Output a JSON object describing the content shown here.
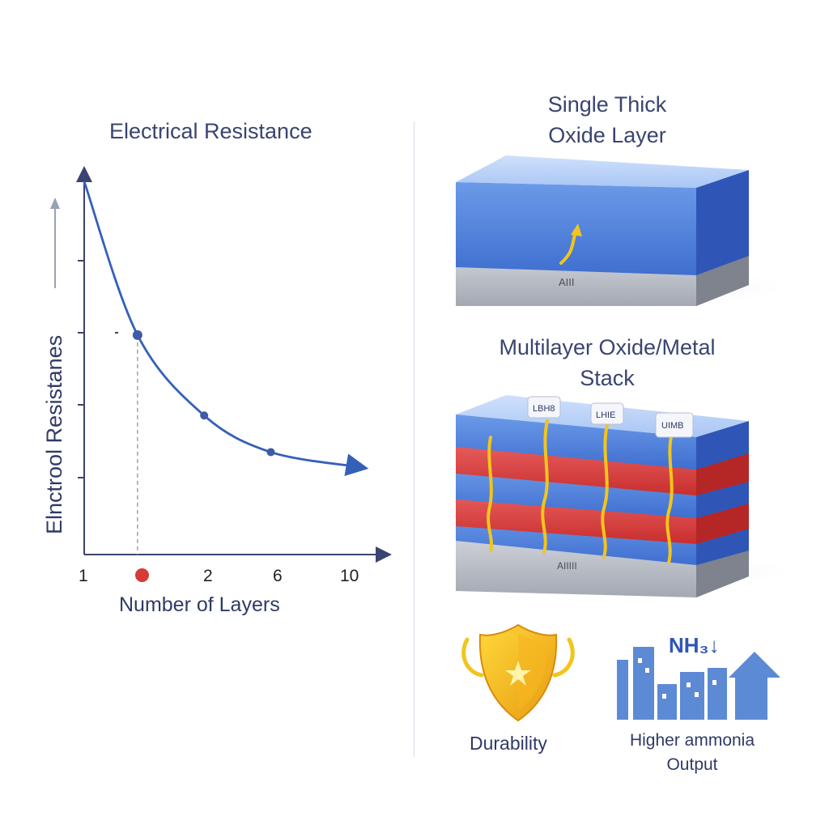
{
  "chart": {
    "title": "Electrical Resistance",
    "ylabel": "Elnctrool Resistanes",
    "xlabel": "Number of Layers",
    "tick_labels": [
      "1",
      "2",
      "6",
      "10"
    ]
  },
  "chart_data": {
    "type": "line",
    "title": "Electrical Resistance",
    "xlabel": "Number of Layers",
    "ylabel": "Elnctrool Resistanes",
    "x_tick_labels": [
      "1",
      "2",
      "6",
      "10"
    ],
    "series": [
      {
        "x": [
          0,
          0.8,
          1.8,
          2.8,
          4.1
        ],
        "y": [
          5.1,
          3.0,
          1.9,
          1.4,
          1.2
        ]
      }
    ],
    "highlighted_points": [
      {
        "x": 0.8,
        "y": 3.0
      },
      {
        "x": 1.8,
        "y": 1.9
      },
      {
        "x": 2.8,
        "y": 1.4
      }
    ],
    "xlim": [
      0,
      4.3
    ],
    "ylim": [
      0,
      5.2
    ],
    "grid": false,
    "accent_color": "#3560b8",
    "marker_color": "#3f5aa8",
    "highlight_color": "#d63b35"
  },
  "single": {
    "title_line1": "Single Thick",
    "title_line2": "Oxide Layer",
    "plate_label": "AIII"
  },
  "multi": {
    "title_line1": "Multilayer Oxide/Metal",
    "title_line2": "Stack",
    "plate_label": "AIIIII",
    "callouts": [
      "LBH8",
      "LHIE",
      "UIMB"
    ]
  },
  "benefits": {
    "durability_label": "Durability",
    "ammonia_line1": "Higher ammonia",
    "ammonia_line2": "Output",
    "nh3_label": "NH₃↓"
  },
  "colors": {
    "oxide_blue": "#4f7fdc",
    "metal_red": "#dd3d3c",
    "electron_yellow": "#f2c51a",
    "base_gray": "#9ea3ae",
    "text_navy": "#2f3a66"
  }
}
